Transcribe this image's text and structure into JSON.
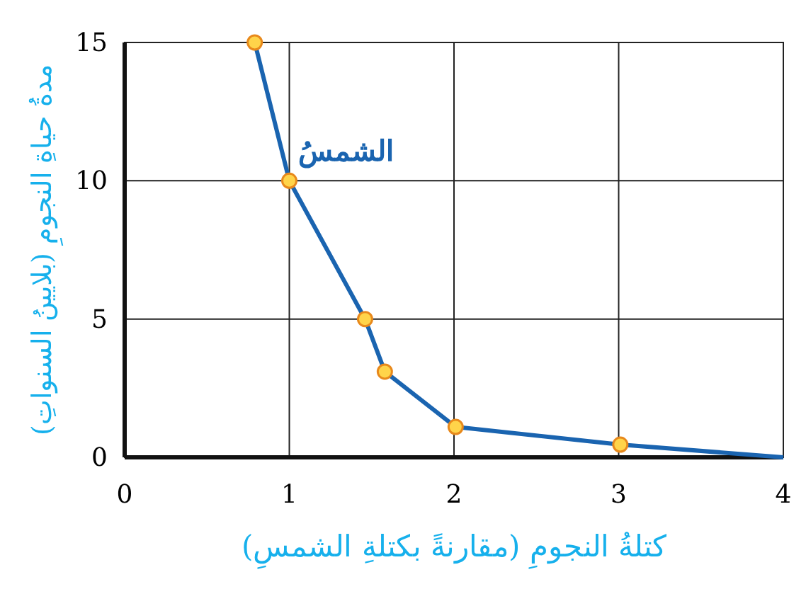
{
  "chart_data": {
    "type": "line",
    "xlabel": "كتلةُ النجومِ (مقارنةً بكتلةِ الشمسِ)",
    "ylabel": "مدةُ حياةِ النجومِ (بلايينُ السنواتِ)",
    "xlim": [
      0,
      4
    ],
    "ylim": [
      0,
      15
    ],
    "xticks": [
      0,
      1,
      2,
      3,
      4
    ],
    "yticks": [
      0,
      5,
      10,
      15
    ],
    "grid": true,
    "series": [
      {
        "color": "#1a64b0",
        "marker": "none",
        "x": [
          0.79,
          1.0,
          1.46,
          1.58,
          2.01,
          3.01,
          4.0
        ],
        "values": [
          15,
          10,
          5,
          3.1,
          1.1,
          0.46,
          0
        ]
      },
      {
        "type": "scatter",
        "color": "#ffd44a",
        "marker": "circle",
        "x": [
          0.79,
          1.0,
          1.46,
          1.58,
          2.01,
          3.01
        ],
        "values": [
          15,
          10,
          5,
          3.1,
          1.1,
          0.46
        ]
      }
    ],
    "annotations": [
      {
        "text": "الشمسُ",
        "x": 1,
        "y": 10
      }
    ]
  }
}
